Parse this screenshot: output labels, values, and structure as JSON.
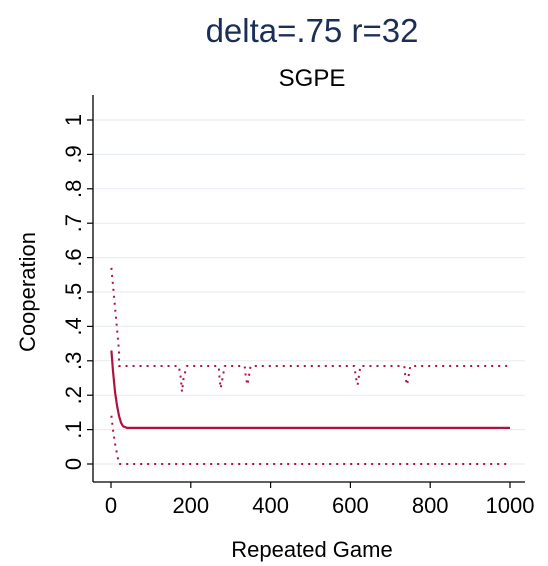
{
  "chart_data": {
    "type": "line",
    "title": "delta=.75 r=32",
    "subtitle": "SGPE",
    "xlabel": "Repeated Game",
    "ylabel": "Cooperation",
    "xlim": [
      0,
      1000
    ],
    "ylim": [
      0,
      1
    ],
    "xticks": [
      0,
      200,
      400,
      600,
      800,
      1000
    ],
    "yticks": [
      0,
      0.1,
      0.2,
      0.3,
      0.4,
      0.5,
      0.6,
      0.7,
      0.8,
      0.9,
      1
    ],
    "xtick_labels": [
      "0",
      "200",
      "400",
      "600",
      "800",
      "1000"
    ],
    "ytick_labels": [
      "0",
      ".1",
      ".2",
      ".3",
      ".4",
      ".5",
      ".6",
      ".7",
      ".8",
      ".9",
      "1"
    ],
    "grid": true,
    "colors": {
      "series": "#b0123f",
      "grid": "#e6ebf0",
      "title": "#1b2f55"
    },
    "series": [
      {
        "style": "solid",
        "x": [
          1,
          5,
          10,
          15,
          20,
          25,
          30,
          40,
          60,
          100,
          200,
          300,
          400,
          500,
          600,
          700,
          800,
          900,
          1000
        ],
        "y": [
          0.33,
          0.27,
          0.21,
          0.17,
          0.14,
          0.12,
          0.11,
          0.105,
          0.105,
          0.105,
          0.105,
          0.105,
          0.105,
          0.105,
          0.105,
          0.105,
          0.105,
          0.105,
          0.105
        ]
      },
      {
        "style": "dotted",
        "x": [
          1,
          20,
          20,
          60,
          170,
          175,
          178,
          182,
          190,
          270,
          272,
          275,
          285,
          335,
          338,
          342,
          350,
          610,
          614,
          618,
          625,
          735,
          738,
          742,
          750,
          1000
        ],
        "y": [
          0.57,
          0.33,
          0.285,
          0.285,
          0.285,
          0.25,
          0.21,
          0.25,
          0.285,
          0.285,
          0.25,
          0.22,
          0.285,
          0.285,
          0.25,
          0.23,
          0.285,
          0.285,
          0.25,
          0.23,
          0.285,
          0.285,
          0.25,
          0.23,
          0.285,
          0.285
        ]
      },
      {
        "style": "dotted",
        "x": [
          1,
          5,
          10,
          15,
          20,
          25,
          1000
        ],
        "y": [
          0.14,
          0.1,
          0.06,
          0.03,
          0.0,
          0.0,
          0.0
        ]
      }
    ]
  }
}
